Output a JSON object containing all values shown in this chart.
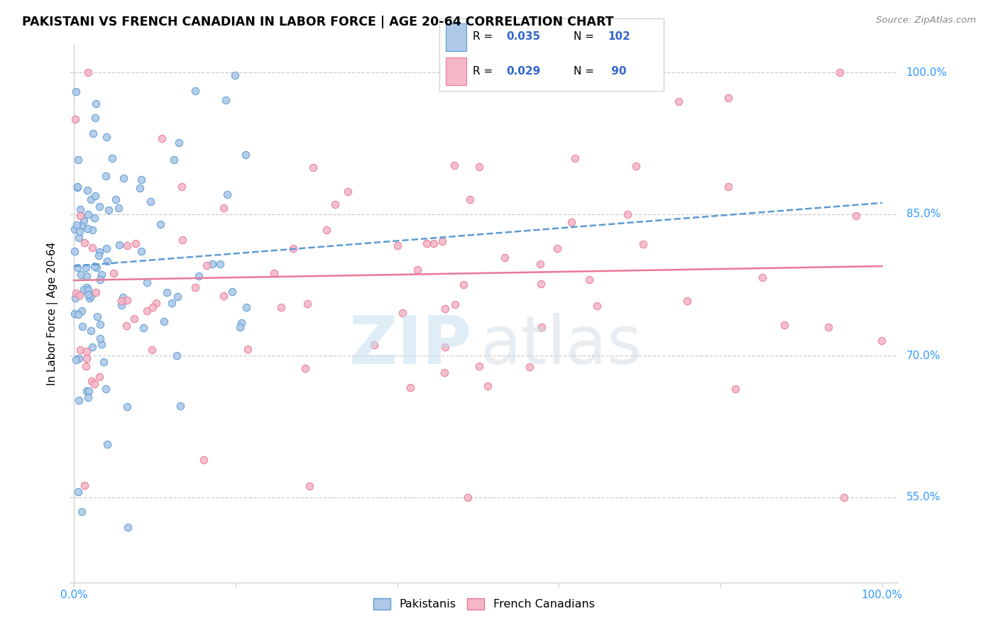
{
  "title": "PAKISTANI VS FRENCH CANADIAN IN LABOR FORCE | AGE 20-64 CORRELATION CHART",
  "source": "Source: ZipAtlas.com",
  "ylabel": "In Labor Force | Age 20-64",
  "ytick_labels": [
    "55.0%",
    "70.0%",
    "85.0%",
    "100.0%"
  ],
  "ytick_values": [
    0.55,
    0.7,
    0.85,
    1.0
  ],
  "xtick_labels": [
    "0.0%",
    "100.0%"
  ],
  "xlim": [
    -0.005,
    1.02
  ],
  "ylim": [
    0.46,
    1.03
  ],
  "blue_fill": "#aec9e8",
  "blue_edge": "#5b9bd5",
  "pink_fill": "#f4b8c8",
  "pink_edge": "#e87898",
  "blue_line_color": "#5b9bd5",
  "pink_line_color": "#e87898",
  "grid_color": "#cccccc",
  "tick_color": "#3399ff",
  "watermark_zip_color": "#c5dff0",
  "watermark_atlas_color": "#cdd8e0",
  "legend_r1": "0.035",
  "legend_n1": "102",
  "legend_r2": "0.029",
  "legend_n2": " 90",
  "legend_text_color": "#000000",
  "legend_value_color": "#3366cc",
  "pak_line_x": [
    0.0,
    1.0
  ],
  "pak_line_y": [
    0.795,
    0.862
  ],
  "frc_line_x": [
    0.0,
    1.0
  ],
  "frc_line_y": [
    0.78,
    0.795
  ]
}
